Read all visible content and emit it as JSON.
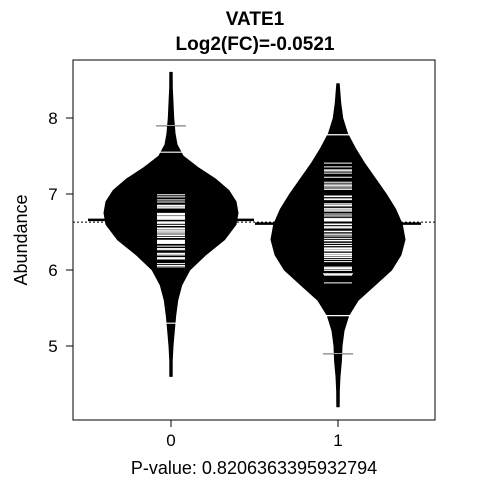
{
  "chart_data": {
    "type": "beanplot",
    "title": "VATE1",
    "subtitle": "Log2(FC)=-0.0521",
    "xlabel": "P-value: 0.8206363395932794",
    "ylabel": "Abundance",
    "categories": [
      "0",
      "1"
    ],
    "ylim": [
      4.0,
      8.8
    ],
    "yticks": [
      5,
      6,
      7,
      8
    ],
    "overall_mean": 6.63,
    "groups": [
      {
        "name": "0",
        "mean": 6.66,
        "min": 4.6,
        "max": 8.6,
        "outlier_lines": [
          5.3,
          7.9,
          7.55
        ],
        "density": [
          [
            4.6,
            0.0
          ],
          [
            4.8,
            0.015
          ],
          [
            5.0,
            0.03
          ],
          [
            5.2,
            0.05
          ],
          [
            5.4,
            0.07
          ],
          [
            5.6,
            0.1
          ],
          [
            5.8,
            0.16
          ],
          [
            6.0,
            0.28
          ],
          [
            6.2,
            0.52
          ],
          [
            6.4,
            0.8
          ],
          [
            6.6,
            0.97
          ],
          [
            6.75,
            1.0
          ],
          [
            6.9,
            0.97
          ],
          [
            7.05,
            0.86
          ],
          [
            7.2,
            0.66
          ],
          [
            7.35,
            0.4
          ],
          [
            7.5,
            0.18
          ],
          [
            7.65,
            0.09
          ],
          [
            7.8,
            0.06
          ],
          [
            8.0,
            0.04
          ],
          [
            8.2,
            0.03
          ],
          [
            8.4,
            0.02
          ],
          [
            8.6,
            0.0
          ]
        ],
        "strip_range": [
          5.85,
          7.25
        ]
      },
      {
        "name": "1",
        "mean": 6.61,
        "min": 4.2,
        "max": 8.45,
        "outlier_lines": [
          4.9,
          5.4,
          5.95,
          7.78
        ],
        "density": [
          [
            4.2,
            0.0
          ],
          [
            4.4,
            0.02
          ],
          [
            4.6,
            0.03
          ],
          [
            4.8,
            0.05
          ],
          [
            5.0,
            0.06
          ],
          [
            5.2,
            0.09
          ],
          [
            5.4,
            0.16
          ],
          [
            5.6,
            0.3
          ],
          [
            5.8,
            0.55
          ],
          [
            6.0,
            0.8
          ],
          [
            6.2,
            0.94
          ],
          [
            6.4,
            1.0
          ],
          [
            6.6,
            0.96
          ],
          [
            6.8,
            0.86
          ],
          [
            7.0,
            0.72
          ],
          [
            7.2,
            0.56
          ],
          [
            7.4,
            0.4
          ],
          [
            7.6,
            0.26
          ],
          [
            7.8,
            0.14
          ],
          [
            8.0,
            0.07
          ],
          [
            8.2,
            0.04
          ],
          [
            8.45,
            0.0
          ]
        ],
        "strip_range": [
          5.6,
          7.7
        ]
      }
    ]
  }
}
